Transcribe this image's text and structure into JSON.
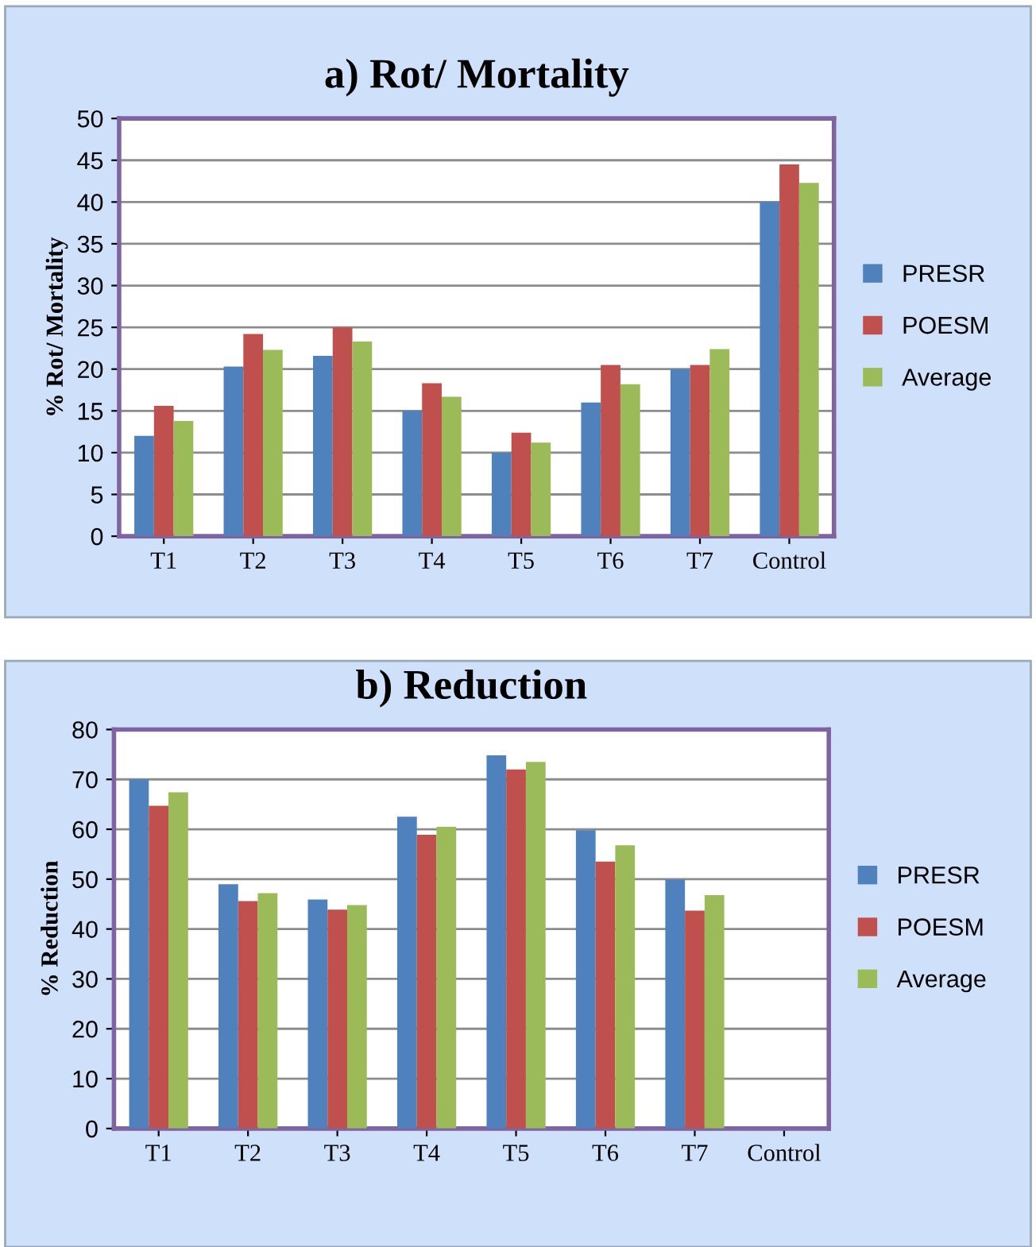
{
  "chart_data": [
    {
      "type": "bar",
      "title": "a) Rot/ Mortality",
      "ylabel": "% Rot/ Mortality",
      "categories": [
        "T1",
        "T2",
        "T3",
        "T4",
        "T5",
        "T6",
        "T7",
        "Control"
      ],
      "ylim": [
        0,
        50
      ],
      "yticks": [
        0,
        5,
        10,
        15,
        20,
        25,
        30,
        35,
        40,
        45,
        50
      ],
      "grid": "y",
      "legend": "right",
      "series": [
        {
          "name": "PRESR",
          "color": "#4f81bd",
          "values": [
            12,
            20.3,
            21.6,
            15,
            10,
            16,
            20,
            40
          ]
        },
        {
          "name": "POESM",
          "color": "#c0504d",
          "values": [
            15.6,
            24.2,
            25,
            18.3,
            12.4,
            20.5,
            20.5,
            44.5
          ]
        },
        {
          "name": "Average",
          "color": "#9bbb59",
          "values": [
            13.8,
            22.3,
            23.3,
            16.7,
            11.2,
            18.2,
            22.4,
            42.3
          ]
        }
      ]
    },
    {
      "type": "bar",
      "title": "b) Reduction",
      "ylabel": "% Reduction",
      "categories": [
        "T1",
        "T2",
        "T3",
        "T4",
        "T5",
        "T6",
        "T7",
        "Control"
      ],
      "ylim": [
        0,
        80
      ],
      "yticks": [
        0,
        10,
        20,
        30,
        40,
        50,
        60,
        70,
        80
      ],
      "grid": "y",
      "legend": "right",
      "series": [
        {
          "name": "PRESR",
          "color": "#4f81bd",
          "values": [
            70,
            49,
            45.9,
            62.5,
            74.8,
            59.8,
            49.9,
            null
          ]
        },
        {
          "name": "POESM",
          "color": "#c0504d",
          "values": [
            64.7,
            45.6,
            43.9,
            58.9,
            72,
            53.5,
            43.7,
            null
          ]
        },
        {
          "name": "Average",
          "color": "#9bbb59",
          "values": [
            67.4,
            47.2,
            44.8,
            60.5,
            73.5,
            56.8,
            46.8,
            null
          ]
        }
      ]
    }
  ]
}
